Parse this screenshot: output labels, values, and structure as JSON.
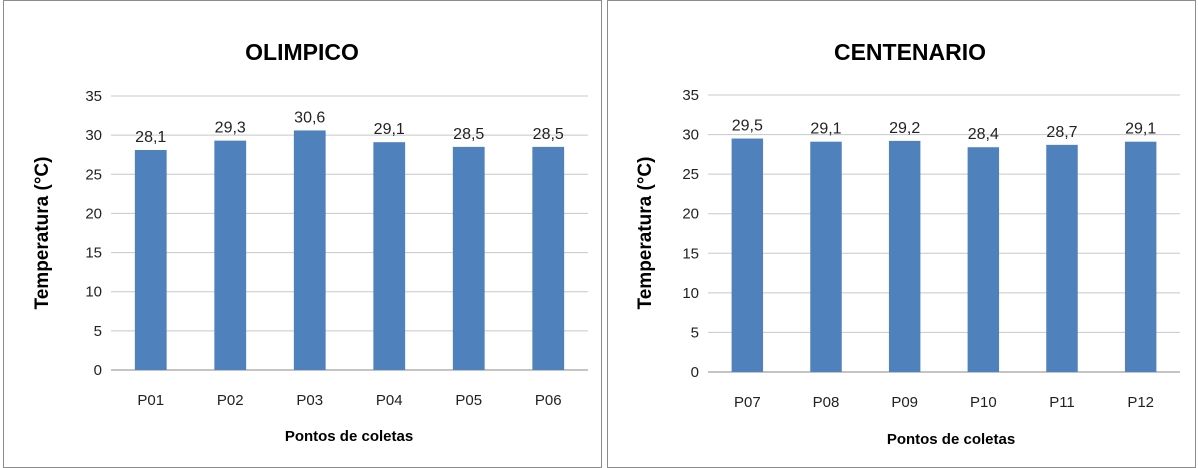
{
  "chart_data": [
    {
      "type": "bar",
      "title": "OLIMPICO",
      "xlabel": "Pontos de coletas",
      "ylabel": "Temperatura  (°C)",
      "categories": [
        "P01",
        "P02",
        "P03",
        "P04",
        "P05",
        "P06"
      ],
      "values": [
        28.1,
        29.3,
        30.6,
        29.1,
        28.5,
        28.5
      ],
      "value_labels": [
        "28,1",
        "29,3",
        "30,6",
        "29,1",
        "28,5",
        "28,5"
      ],
      "yticks": [
        "0",
        "5",
        "10",
        "15",
        "20",
        "25",
        "30",
        "35"
      ],
      "ylim": [
        0,
        35
      ],
      "grid": true,
      "bar_color": "#4f81bd"
    },
    {
      "type": "bar",
      "title": "CENTENARIO",
      "xlabel": "Pontos de coletas",
      "ylabel": "Temperatura (°C)",
      "categories": [
        "P07",
        "P08",
        "P09",
        "P10",
        "P11",
        "P12"
      ],
      "values": [
        29.5,
        29.1,
        29.2,
        28.4,
        28.7,
        29.1
      ],
      "value_labels": [
        "29,5",
        "29,1",
        "29,2",
        "28,4",
        "28,7",
        "29,1"
      ],
      "yticks": [
        "0",
        "5",
        "10",
        "15",
        "20",
        "25",
        "30",
        "35"
      ],
      "ylim": [
        0,
        35
      ],
      "grid": true,
      "bar_color": "#4f81bd"
    }
  ]
}
